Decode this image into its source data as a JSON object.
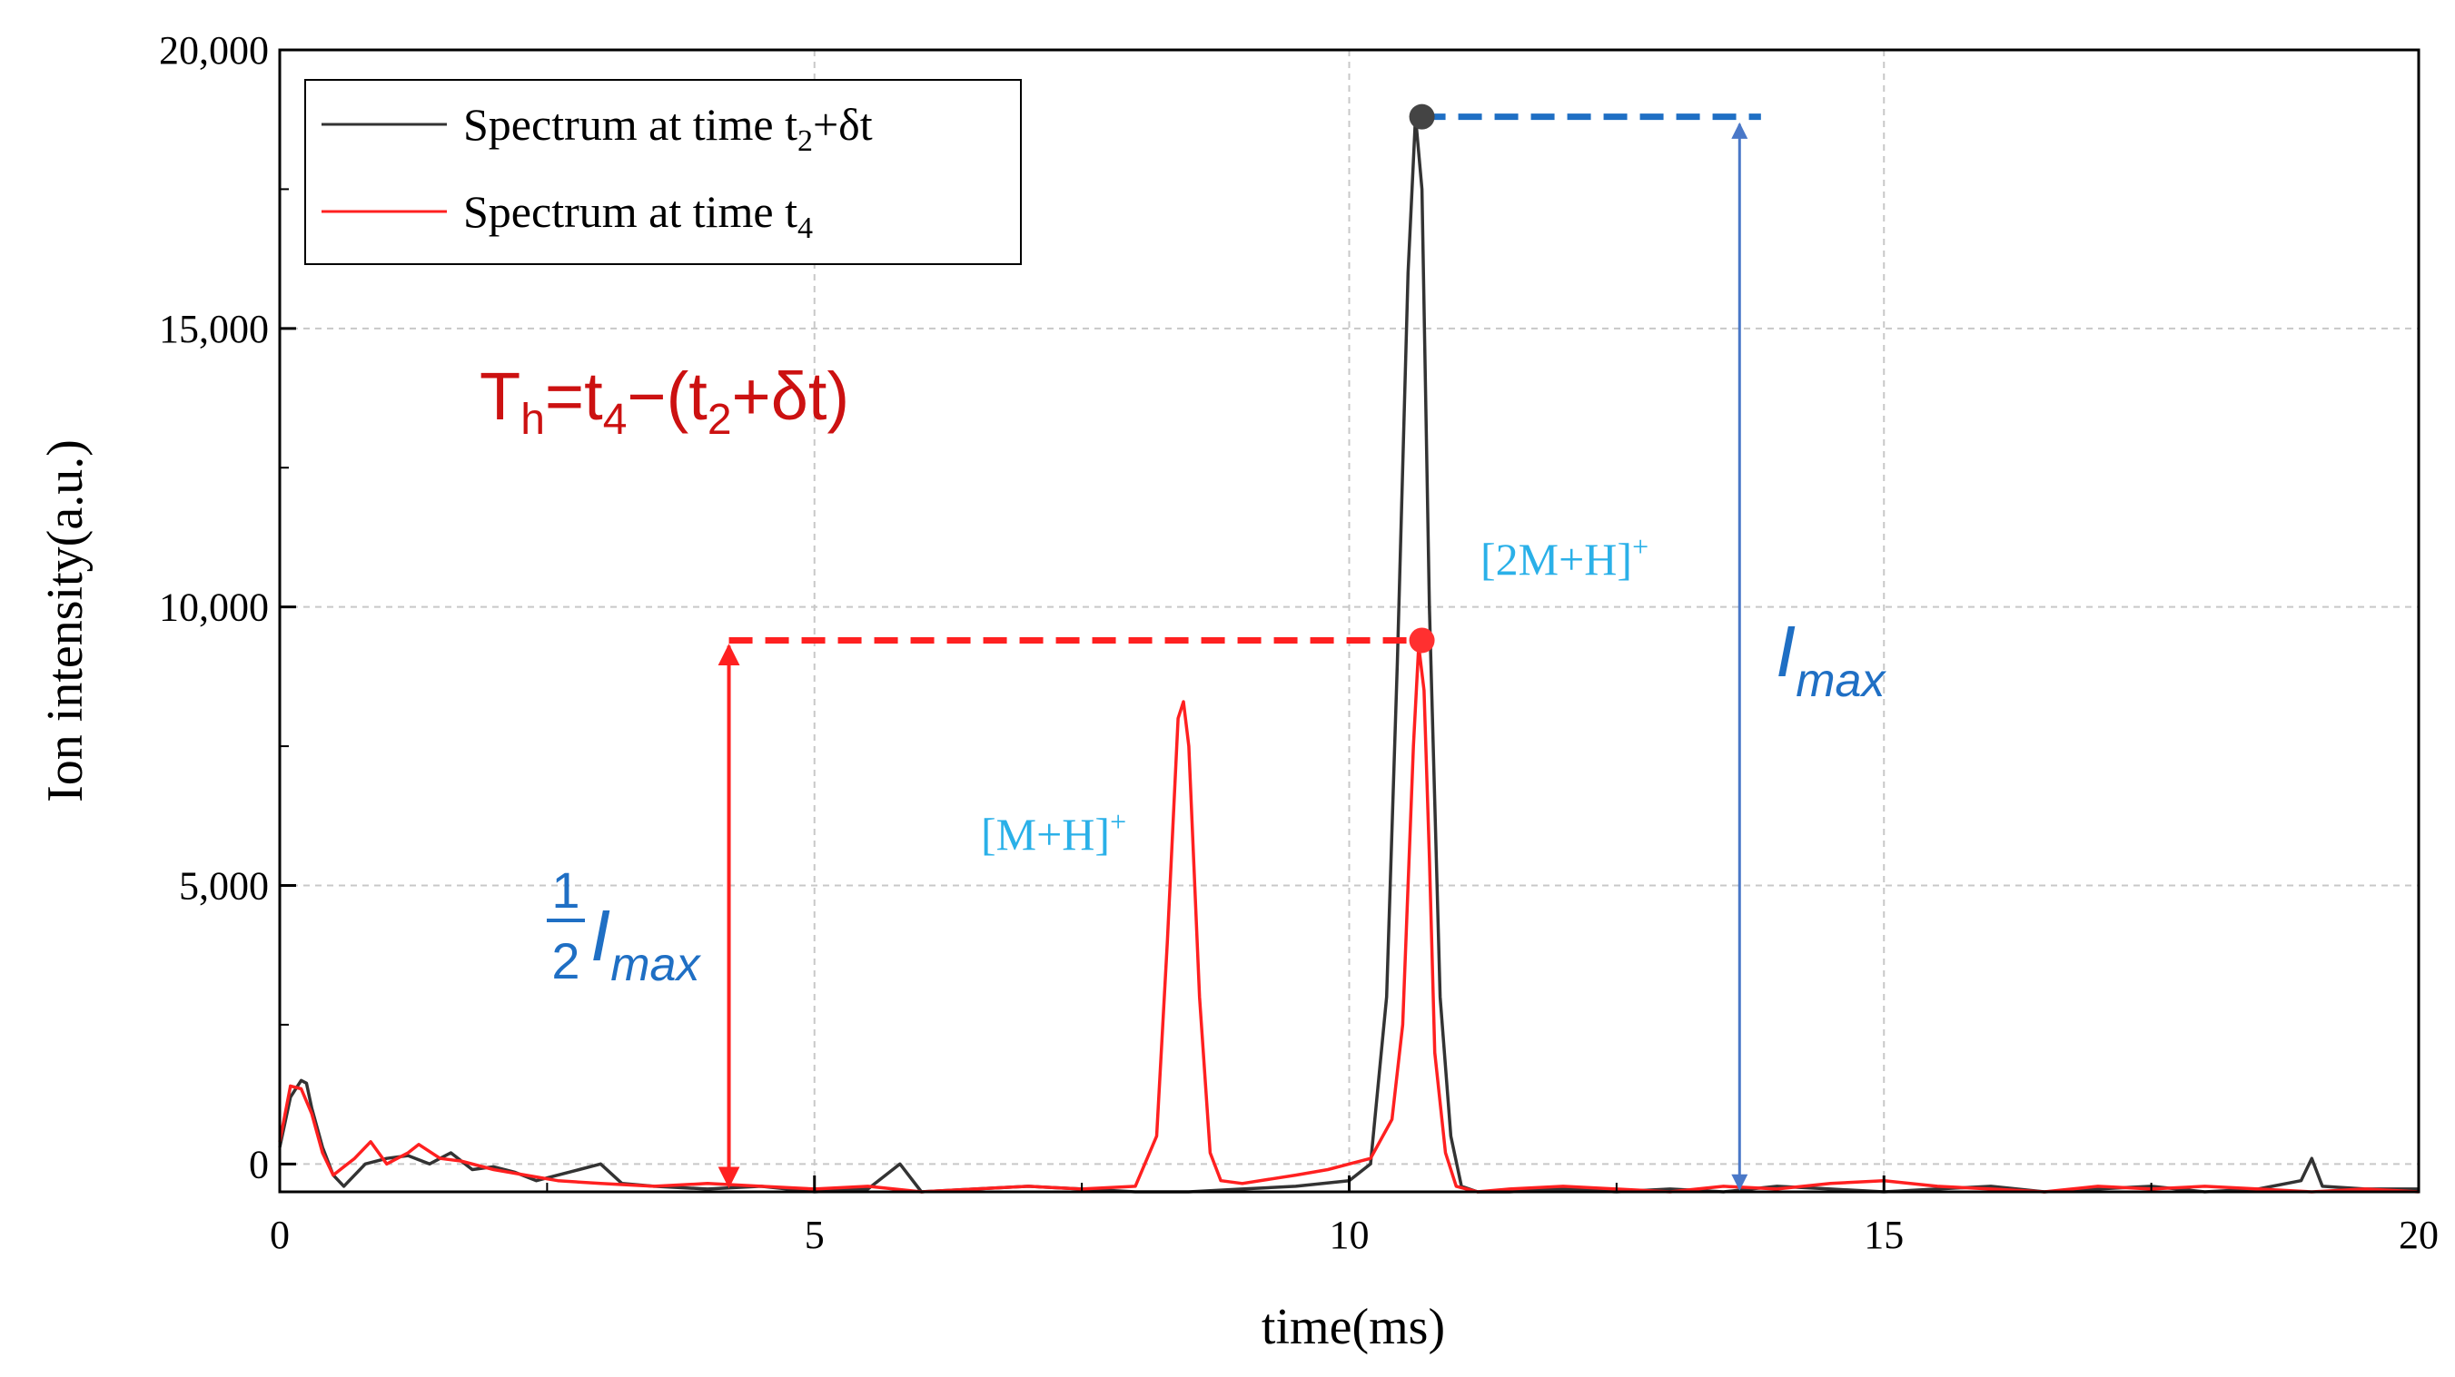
{
  "chart_data": {
    "type": "line",
    "xlabel": "time(ms)",
    "ylabel": "Ion intensity(a.u.)",
    "xlim": [
      0,
      20
    ],
    "ylim": [
      -500,
      20000
    ],
    "x_ticks": [
      0,
      5,
      10,
      15,
      20
    ],
    "y_ticks": [
      0,
      5000,
      10000,
      15000,
      20000
    ],
    "x_tick_labels": [
      "0",
      "5",
      "10",
      "15",
      "20"
    ],
    "y_tick_labels": [
      "0",
      "5,000",
      "10,000",
      "15,000",
      "20,000"
    ],
    "grid": true,
    "legend_position": "top-left",
    "series": [
      {
        "name": "Spectrum at time t2+δt",
        "color": "#333333",
        "x": [
          0,
          0.1,
          0.2,
          0.25,
          0.3,
          0.4,
          0.5,
          0.6,
          0.8,
          1.0,
          1.2,
          1.4,
          1.6,
          1.8,
          2.0,
          2.2,
          2.4,
          2.6,
          2.8,
          3.0,
          3.2,
          3.5,
          4.0,
          4.5,
          5.0,
          5.5,
          5.8,
          6.0,
          6.5,
          7.0,
          7.5,
          8.0,
          8.5,
          9.0,
          9.5,
          10.0,
          10.2,
          10.35,
          10.45,
          10.55,
          10.62,
          10.68,
          10.75,
          10.85,
          10.95,
          11.05,
          11.2,
          11.5,
          12.0,
          12.5,
          13.0,
          13.5,
          14.0,
          14.5,
          15.0,
          15.5,
          16.0,
          16.5,
          17.0,
          17.5,
          18.0,
          18.5,
          18.9,
          19.0,
          19.1,
          19.5,
          20.0
        ],
        "y": [
          300,
          1200,
          1500,
          1450,
          1000,
          300,
          -200,
          -400,
          0,
          100,
          150,
          0,
          200,
          -100,
          -50,
          -150,
          -300,
          -200,
          -100,
          0,
          -350,
          -400,
          -450,
          -400,
          -500,
          -450,
          0,
          -500,
          -450,
          -400,
          -450,
          -500,
          -500,
          -450,
          -400,
          -300,
          0,
          3000,
          9000,
          16000,
          18800,
          17500,
          10000,
          3000,
          500,
          -400,
          -500,
          -500,
          -450,
          -500,
          -450,
          -500,
          -400,
          -450,
          -500,
          -450,
          -400,
          -500,
          -450,
          -400,
          -500,
          -450,
          -300,
          100,
          -400,
          -450,
          -450
        ]
      },
      {
        "name": "Spectrum at time t4",
        "color": "#ff2020",
        "x": [
          0,
          0.1,
          0.2,
          0.3,
          0.4,
          0.5,
          0.7,
          0.85,
          1.0,
          1.2,
          1.3,
          1.5,
          1.7,
          2.0,
          2.3,
          2.6,
          3.0,
          3.5,
          4.0,
          4.5,
          5.0,
          5.5,
          6.0,
          6.5,
          7.0,
          7.5,
          8.0,
          8.2,
          8.3,
          8.4,
          8.45,
          8.5,
          8.6,
          8.7,
          8.8,
          9.0,
          9.5,
          9.8,
          10.0,
          10.2,
          10.4,
          10.5,
          10.6,
          10.65,
          10.7,
          10.75,
          10.8,
          10.9,
          11.0,
          11.2,
          11.5,
          12.0,
          12.5,
          13.0,
          13.5,
          14.0,
          14.5,
          15.0,
          15.5,
          16.0,
          16.5,
          17.0,
          17.5,
          18.0,
          18.5,
          19.0,
          19.5,
          20.0
        ],
        "y": [
          400,
          1400,
          1350,
          900,
          200,
          -200,
          100,
          400,
          0,
          200,
          350,
          100,
          50,
          -100,
          -200,
          -300,
          -350,
          -400,
          -350,
          -400,
          -450,
          -400,
          -500,
          -450,
          -400,
          -450,
          -400,
          500,
          4000,
          8000,
          8300,
          7500,
          3000,
          200,
          -300,
          -350,
          -200,
          -100,
          0,
          100,
          800,
          2500,
          7500,
          9300,
          8500,
          5500,
          2000,
          200,
          -400,
          -500,
          -450,
          -400,
          -450,
          -500,
          -400,
          -450,
          -350,
          -300,
          -400,
          -450,
          -500,
          -400,
          -450,
          -400,
          -450,
          -500,
          -450,
          -500
        ]
      }
    ],
    "markers": [
      {
        "name": "peak-max",
        "x": 10.68,
        "y": 18800,
        "color": "#444444"
      },
      {
        "name": "half-max",
        "x": 10.68,
        "y": 9400,
        "color": "#ff3030"
      }
    ],
    "annotations": {
      "formula": {
        "T": "T",
        "h": "h",
        "eq": "=t",
        "four": "4",
        "minus": "−(t",
        "two": "2",
        "tail": "+δt)"
      },
      "legend_labels": [
        {
          "main": "Spectrum at time t",
          "sub": "2",
          "tail": "+δt"
        },
        {
          "main": "Spectrum at time t",
          "sub": "4",
          "tail": ""
        }
      ],
      "ion_2m": {
        "text": "[2M+H]",
        "sup": "+"
      },
      "ion_m": {
        "text": "[M+H]",
        "sup": "+"
      },
      "imax": {
        "I": "I",
        "sub": "max"
      },
      "half_imax": {
        "num": "1",
        "den": "2",
        "I": "I",
        "sub": "max"
      },
      "colors": {
        "formula": "#cc1111",
        "ion": "#2ab0e8",
        "imax": "#1f6fc4",
        "red_guide": "#ff2020",
        "blue_guide": "#1f6fc4",
        "blue_arrow": "#4a78c8"
      },
      "imax_arrow_x": 13.65,
      "half_arrow_x": 4.2,
      "hline_half_start_x": 4.2,
      "hline_max_end_x": 13.85
    }
  }
}
